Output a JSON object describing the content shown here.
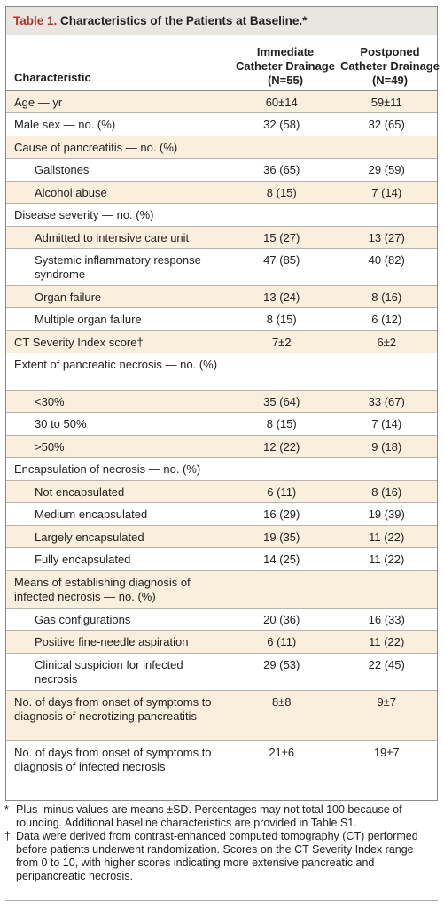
{
  "table": {
    "title_number": "Table 1.",
    "title_text": "Characteristics of the Patients at Baseline.*",
    "header": {
      "characteristic": "Characteristic",
      "col1_line1": "Immediate",
      "col1_line2": "Catheter Drainage",
      "col1_line3": "(N=55)",
      "col2_line1": "Postponed",
      "col2_line2": "Catheter Drainage",
      "col2_line3": "(N=49)"
    },
    "rows": [
      {
        "label": "Age — yr",
        "v1": "60±14",
        "v2": "59±11"
      },
      {
        "label": "Male sex — no. (%)",
        "v1": "32 (58)",
        "v2": "32 (65)"
      },
      {
        "label": "Cause of pancreatitis — no. (%)",
        "v1": "",
        "v2": ""
      },
      {
        "label": "Gallstones",
        "v1": "36 (65)",
        "v2": "29 (59)"
      },
      {
        "label": "Alcohol abuse",
        "v1": "8 (15)",
        "v2": "7 (14)"
      },
      {
        "label": "Disease severity — no. (%)",
        "v1": "",
        "v2": ""
      },
      {
        "label": "Admitted to intensive care unit",
        "v1": "15 (27)",
        "v2": "13 (27)"
      },
      {
        "label": "Systemic inflammatory response syndrome",
        "v1": "47 (85)",
        "v2": "40 (82)"
      },
      {
        "label": "Organ failure",
        "v1": "13 (24)",
        "v2": "8 (16)"
      },
      {
        "label": "Multiple organ failure",
        "v1": "8 (15)",
        "v2": "6 (12)"
      },
      {
        "label": "CT Severity Index score†",
        "v1": "7±2",
        "v2": "6±2"
      },
      {
        "label": "Extent of pancreatic necrosis — no. (%)",
        "v1": "",
        "v2": ""
      },
      {
        "label": "<30%",
        "v1": "35 (64)",
        "v2": "33 (67)"
      },
      {
        "label": "30 to 50%",
        "v1": "8 (15)",
        "v2": "7 (14)"
      },
      {
        "label": ">50%",
        "v1": "12 (22)",
        "v2": "9 (18)"
      },
      {
        "label": "Encapsulation of necrosis — no. (%)",
        "v1": "",
        "v2": ""
      },
      {
        "label": "Not encapsulated",
        "v1": "6 (11)",
        "v2": "8 (16)"
      },
      {
        "label": "Medium encapsulated",
        "v1": "16 (29)",
        "v2": "19 (39)"
      },
      {
        "label": "Largely encapsulated",
        "v1": "19 (35)",
        "v2": "11 (22)"
      },
      {
        "label": "Fully encapsulated",
        "v1": "14 (25)",
        "v2": "11 (22)"
      },
      {
        "label": "Means of establishing diagnosis of infected necrosis — no. (%)",
        "v1": "",
        "v2": ""
      },
      {
        "label": "Gas configurations",
        "v1": "20 (36)",
        "v2": "16 (33)"
      },
      {
        "label": "Positive fine-needle aspiration",
        "v1": "6 (11)",
        "v2": "11 (22)"
      },
      {
        "label": "Clinical suspicion for infected necrosis",
        "v1": "29 (53)",
        "v2": "22 (45)"
      },
      {
        "label": "No. of days from onset of symptoms to diagnosis of necrotizing pancreatitis",
        "v1": "8±8",
        "v2": "9±7"
      },
      {
        "label": "No. of days from onset of symptoms to diagnosis of infected necrosis",
        "v1": "21±6",
        "v2": "19±7"
      }
    ]
  },
  "footnotes": [
    {
      "symbol": "*",
      "text": "Plus–minus values are means ±SD. Percentages may not total 100 because of rounding. Additional baseline characteristics are provided in Table S1."
    },
    {
      "symbol": "†",
      "text": "Data were derived from contrast-enhanced computed tomography (CT) performed before patients underwent randomization. Scores on the CT Severity Index range from 0 to 10, with higher scores indicating more extensive pancreatic and peripancreatic necrosis."
    }
  ]
}
